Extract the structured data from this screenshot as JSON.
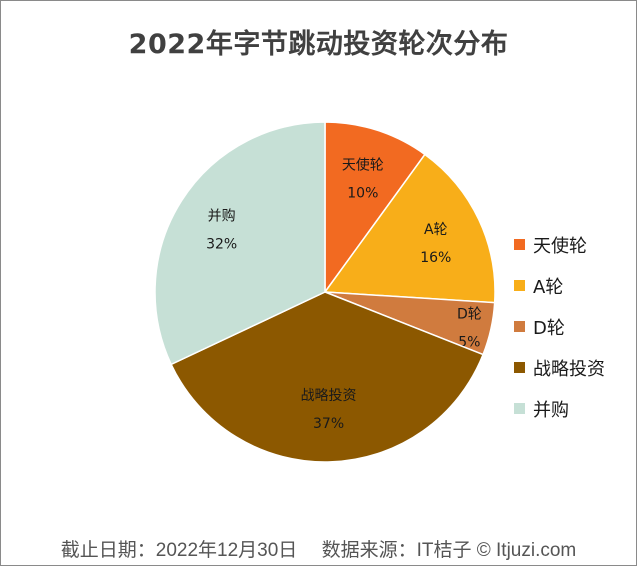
{
  "chart_data": {
    "type": "pie",
    "title": "2022年字节跳动投资轮次分布",
    "categories": [
      "天使轮",
      "A轮",
      "D轮",
      "战略投资",
      "并购"
    ],
    "values": [
      10,
      16,
      5,
      37,
      32
    ],
    "unit": "%",
    "colors": [
      "#F26A21",
      "#F8AE19",
      "#D07B3E",
      "#8C5800",
      "#C6E0D6"
    ],
    "start_angle_deg": 0,
    "direction": "clockwise",
    "legend_position": "right",
    "data_labels": [
      {
        "name": "天使轮",
        "pct": "10%"
      },
      {
        "name": "A轮",
        "pct": "16%"
      },
      {
        "name": "D轮",
        "pct": "5%"
      },
      {
        "name": "战略投资",
        "pct": "37%"
      },
      {
        "name": "并购",
        "pct": "32%"
      }
    ]
  },
  "footer": {
    "text": "截止日期：2022年12月30日　 数据来源：IT桔子 © Itjuzi.com"
  }
}
